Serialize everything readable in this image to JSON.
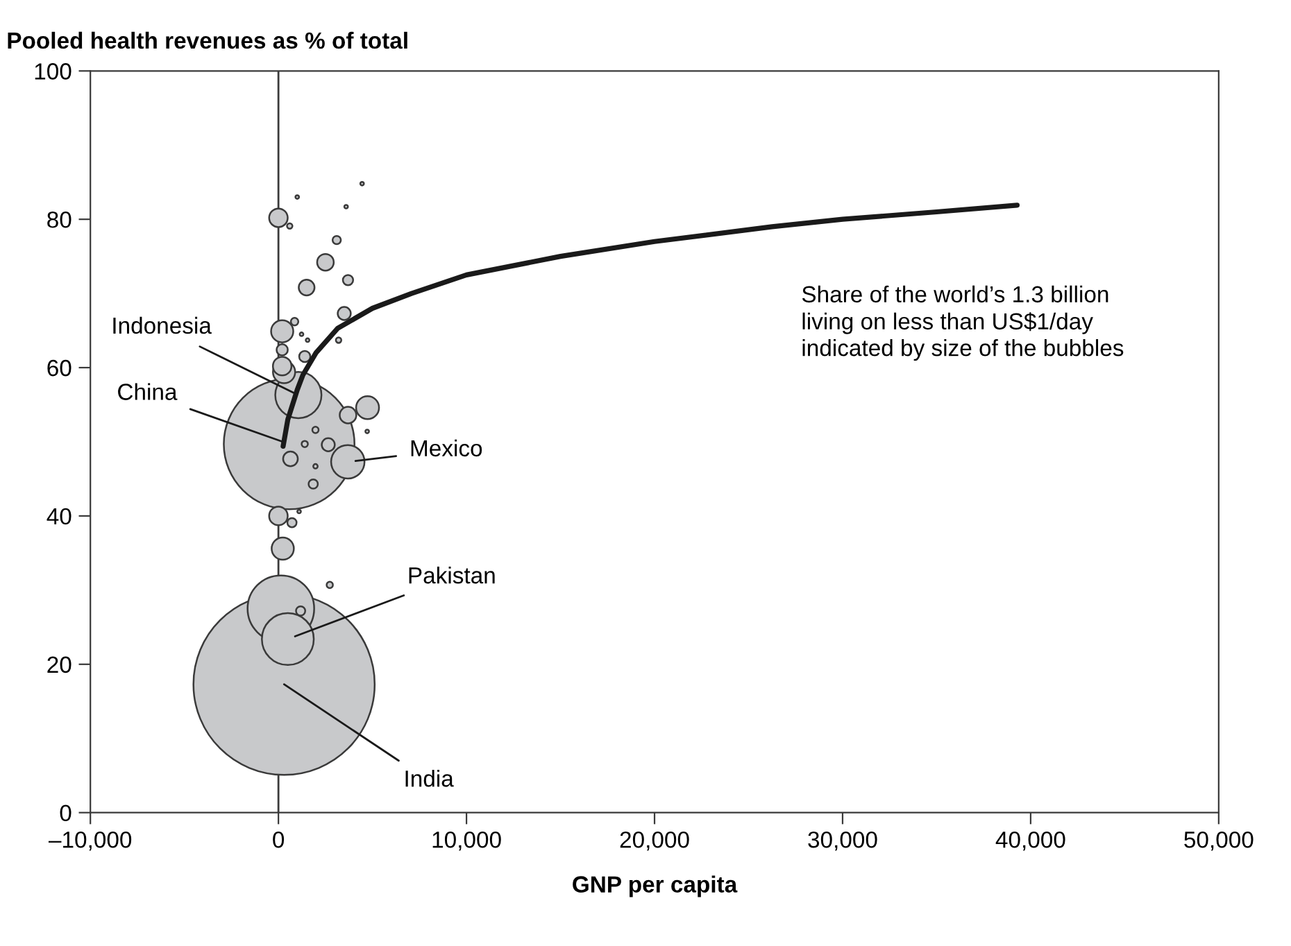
{
  "chart_data": {
    "type": "bubble",
    "title": "Pooled health revenues as % of total",
    "xlabel": "GNP per capita",
    "xlim": [
      -10000,
      50000
    ],
    "ylim": [
      0,
      100
    ],
    "xticks": [
      {
        "value": -10000,
        "label": "–10,000"
      },
      0,
      {
        "value": 10000,
        "label": "10,000"
      },
      {
        "value": 20000,
        "label": "20,000"
      },
      {
        "value": 30000,
        "label": "30,000"
      },
      {
        "value": 40000,
        "label": "40,000"
      },
      {
        "value": 50000,
        "label": "50,000"
      }
    ],
    "yticks": [
      0,
      20,
      40,
      60,
      80,
      100
    ],
    "grid": false,
    "legend": false,
    "ref_lines": [
      {
        "axis": "x",
        "value": 0,
        "label": null,
        "color": "#3a3a3a"
      }
    ],
    "series": [
      {
        "type": "bubble",
        "marker": "circle",
        "color": "#c8c9cb",
        "x": [
          300,
          570,
          130,
          500,
          1060,
          3690,
          4740,
          230,
          200,
          300,
          0,
          200,
          0,
          3700,
          2500,
          640,
          1500,
          3500,
          3700,
          2650,
          200,
          1400,
          3100,
          860,
          1850,
          720,
          600,
          3200,
          1970,
          2730,
          1180,
          1000,
          4450,
          3600,
          1230,
          1550,
          4720,
          1400,
          1970,
          1100
        ],
        "values": [
          17.3,
          49.7,
          27.5,
          23.4,
          56.3,
          47.3,
          54.6,
          35.6,
          64.9,
          59.4,
          80.2,
          60.2,
          40,
          53.6,
          74.2,
          47.7,
          70.8,
          67.3,
          71.8,
          49.6,
          62.4,
          61.5,
          77.2,
          66.2,
          44.3,
          39.1,
          79.1,
          63.7,
          51.6,
          30.7,
          27.2,
          83,
          84.8,
          81.7,
          64.5,
          63.7,
          51.4,
          49.7,
          46.7,
          40.6
        ],
        "sizes": [
          1,
          0.52,
          0.135,
          0.082,
          0.065,
          0.034,
          0.016,
          0.015,
          0.015,
          0.015,
          0.0105,
          0.0105,
          0.0105,
          0.0084,
          0.0084,
          0.0066,
          0.0076,
          0.0052,
          0.0032,
          0.0052,
          0.0038,
          0.0038,
          0.0021,
          0.0017,
          0.0026,
          0.0026,
          0.0009,
          0.0009,
          0.0012,
          0.0012,
          0.0026,
          0.0004,
          0.0004,
          0.0004,
          0.0004,
          0.0004,
          0.0004,
          0.0012,
          0.0006,
          0.0004
        ]
      },
      {
        "type": "line",
        "color": "#1a1a1a",
        "x": [
          250,
          500,
          1000,
          1300,
          2000,
          3150,
          5000,
          7080,
          10000,
          15000,
          20000,
          26250,
          30000,
          35000,
          39280
        ],
        "values": [
          49.4,
          53,
          57,
          59,
          62,
          65.3,
          68,
          70,
          72.5,
          75,
          77,
          79,
          80,
          81,
          81.9
        ]
      }
    ],
    "annotations": [
      {
        "text": "India",
        "x": 300,
        "y": 17.3
      },
      {
        "text": "China",
        "x": 570,
        "y": 49.7
      },
      {
        "text": "Pakistan",
        "x": 500,
        "y": 23.4
      },
      {
        "text": "Indonesia",
        "x": 1060,
        "y": 56.3
      },
      {
        "text": "Mexico",
        "x": 3690,
        "y": 47.3
      },
      "Share of the world’s 1.3 billion\nliving on less than US$1/day\nindicated by size of the bubbles"
    ]
  }
}
